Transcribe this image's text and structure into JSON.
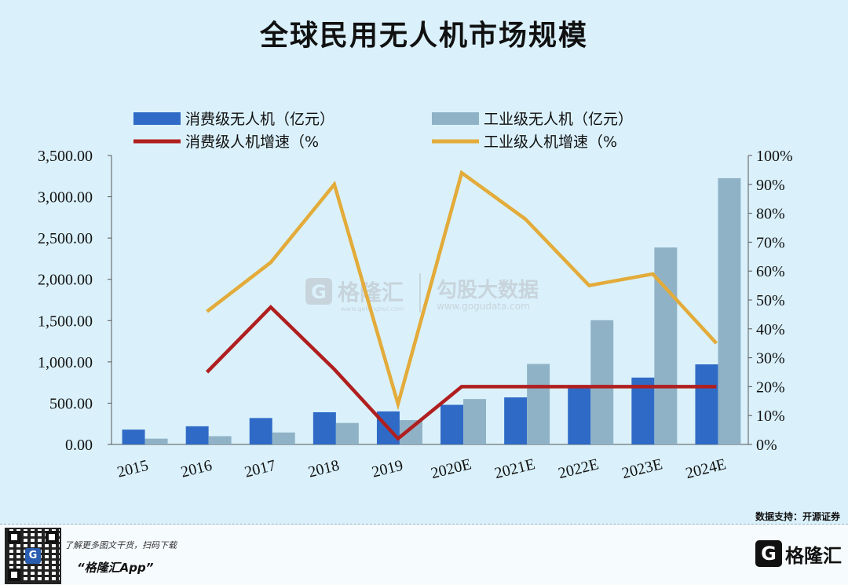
{
  "title": "全球民用无人机市场规模",
  "chart_data": {
    "type": "bar+line",
    "categories": [
      "2015",
      "2016",
      "2017",
      "2018",
      "2019",
      "2020E",
      "2021E",
      "2022E",
      "2023E",
      "2024E"
    ],
    "bars": [
      {
        "name": "消费级无人机（亿元）",
        "color": "#2f6bc6",
        "values": [
          180,
          220,
          320,
          390,
          400,
          480,
          570,
          700,
          810,
          970
        ]
      },
      {
        "name": "工业级无人机（亿元）",
        "color": "#8fb2c6",
        "values": [
          70,
          100,
          145,
          260,
          295,
          550,
          975,
          1505,
          2385,
          3225
        ]
      }
    ],
    "lines": [
      {
        "name": "消费级人机增速（%",
        "color": "#b01f1f",
        "values": [
          null,
          25,
          47.5,
          26,
          2,
          20,
          20,
          20,
          20,
          20
        ]
      },
      {
        "name": "工业级人机增速（%",
        "color": "#e3ab3a",
        "values": [
          null,
          46,
          63,
          90,
          14,
          94,
          78,
          55,
          59,
          35
        ]
      }
    ],
    "y_left": {
      "min": 0,
      "max": 3500,
      "step": 500,
      "tick_labels": [
        "0.00",
        "500.00",
        "1,000.00",
        "1,500.00",
        "2,000.00",
        "2,500.00",
        "3,000.00",
        "3,500.00"
      ]
    },
    "y_right": {
      "min": 0,
      "max": 100,
      "step": 10,
      "tick_labels": [
        "0%",
        "10%",
        "20%",
        "30%",
        "40%",
        "50%",
        "60%",
        "70%",
        "80%",
        "90%",
        "100%"
      ]
    },
    "legend_position": "top",
    "grid": false
  },
  "watermark": {
    "brand": "格隆汇",
    "brand_sub": "www.gelonghui.com",
    "data_brand": "勾股大数据",
    "data_url": "www.gogudata.com"
  },
  "source": "数据支持：开源证券",
  "footer": {
    "line1": "了解更多图文干货，扫码下载",
    "line2": "“格隆汇App”",
    "brand": "格隆汇",
    "qr_glyph": "G"
  }
}
